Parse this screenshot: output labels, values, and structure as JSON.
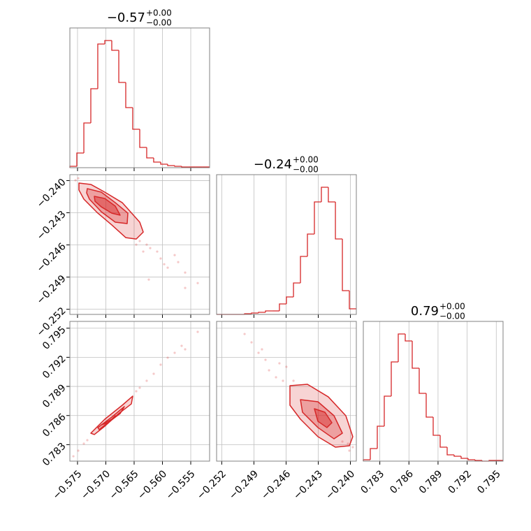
{
  "chart_data": {
    "type": "corner",
    "color": "#d62728",
    "grid": true,
    "parameters": [
      {
        "title": {
          "value": "−0.57",
          "upper": "+0.00",
          "lower": "−0.00"
        },
        "lim": [
          -0.57635,
          -0.55167
        ],
        "ticks": [
          {
            "value": -0.575,
            "label": "−0.575"
          },
          {
            "value": -0.57,
            "label": "−0.570"
          },
          {
            "value": -0.565,
            "label": "−0.565"
          },
          {
            "value": -0.56,
            "label": "−0.560"
          },
          {
            "value": -0.555,
            "label": "−0.555"
          }
        ],
        "bins": [
          -0.57635,
          -0.57512,
          -0.57388,
          -0.57265,
          -0.57142,
          -0.57018,
          -0.56895,
          -0.56771,
          -0.56648,
          -0.56525,
          -0.56401,
          -0.56278,
          -0.56155,
          -0.56031,
          -0.55908,
          -0.55784,
          -0.55661,
          -0.55537,
          -0.55414,
          -0.55291,
          -0.55167
        ],
        "counts": [
          2,
          21,
          64,
          113,
          177,
          182,
          168,
          122,
          86,
          55,
          29,
          14,
          8,
          5,
          3,
          2,
          1,
          1,
          1,
          1
        ],
        "ylim": [
          0,
          200
        ]
      },
      {
        "title": {
          "value": "−0.24",
          "upper": "+0.00",
          "lower": "−0.00"
        },
        "lim": [
          -0.25248,
          -0.23945
        ],
        "ticks": [
          {
            "value": -0.252,
            "label": "−0.252"
          },
          {
            "value": -0.249,
            "label": "−0.249"
          },
          {
            "value": -0.246,
            "label": "−0.246"
          },
          {
            "value": -0.243,
            "label": "−0.243"
          },
          {
            "value": -0.24,
            "label": "−0.240"
          }
        ],
        "bins": [
          -0.25248,
          -0.25183,
          -0.25118,
          -0.25052,
          -0.24987,
          -0.24922,
          -0.24857,
          -0.24792,
          -0.24727,
          -0.24662,
          -0.24597,
          -0.24531,
          -0.24466,
          -0.24401,
          -0.24336,
          -0.24271,
          -0.24206,
          -0.2414,
          -0.24075,
          -0.2401,
          -0.23945
        ],
        "counts": [
          0,
          0,
          0,
          0,
          1,
          2,
          3,
          5,
          5,
          15,
          25,
          45,
          83,
          115,
          161,
          182,
          161,
          108,
          34,
          8
        ],
        "ylim": [
          0,
          200
        ]
      },
      {
        "title": {
          "value": "0.79",
          "upper": "+0.00",
          "lower": "−0.00"
        },
        "lim": [
          0.7813,
          0.7957
        ],
        "ticks": [
          0.783,
          0.786,
          0.789,
          0.792,
          0.795
        ],
        "bins": [
          0.7813,
          0.78202,
          0.78274,
          0.78346,
          0.78418,
          0.7849,
          0.78562,
          0.78634,
          0.78706,
          0.78778,
          0.7885,
          0.78922,
          0.78994,
          0.79066,
          0.79138,
          0.7921,
          0.79282,
          0.79354,
          0.79426,
          0.79498,
          0.7957
        ],
        "counts": [
          2,
          18,
          50,
          93,
          142,
          182,
          172,
          133,
          97,
          63,
          37,
          20,
          9,
          7,
          4,
          2,
          1,
          0,
          1,
          1
        ],
        "ylim": [
          0,
          200
        ]
      }
    ],
    "pairs": [
      {
        "contours": [
          {
            "x": [
              -0.57475,
              -0.57265,
              -0.57018,
              -0.5671,
              -0.56401,
              -0.56339,
              -0.56463,
              -0.56648,
              -0.56895,
              -0.57141,
              -0.57388,
              -0.57475
            ],
            "y": [
              -0.24023,
              -0.24036,
              -0.24108,
              -0.24206,
              -0.24388,
              -0.2448,
              -0.24545,
              -0.24532,
              -0.24414,
              -0.24304,
              -0.24173,
              -0.24088
            ]
          },
          {
            "x": [
              -0.57327,
              -0.5708,
              -0.56833,
              -0.56611,
              -0.56623,
              -0.56833,
              -0.5708,
              -0.5729,
              -0.57339
            ],
            "y": [
              -0.24075,
              -0.24108,
              -0.24206,
              -0.24304,
              -0.24401,
              -0.24388,
              -0.24291,
              -0.24173,
              -0.24115
            ]
          },
          {
            "x": [
              -0.57203,
              -0.57018,
              -0.56833,
              -0.56747,
              -0.56895,
              -0.5708,
              -0.57191
            ],
            "y": [
              -0.24147,
              -0.24167,
              -0.24238,
              -0.24323,
              -0.24304,
              -0.24245,
              -0.24193
            ]
          }
        ],
        "points": {
          "x": [
            -0.56401,
            -0.56278,
            -0.56216,
            -0.56093,
            -0.56031,
            -0.55969,
            -0.55907,
            -0.55784,
            -0.55722,
            -0.55599,
            -0.55599,
            -0.55377,
            -0.56241,
            -0.56463,
            -0.56339,
            -0.57487,
            -0.57536
          ],
          "y": [
            -0.24564,
            -0.24597,
            -0.2463,
            -0.24662,
            -0.24727,
            -0.2478,
            -0.24812,
            -0.24695,
            -0.2476,
            -0.24858,
            -0.25001,
            -0.24956,
            -0.24923,
            -0.24597,
            -0.24662,
            -0.23978,
            -0.23997
          ]
        }
      },
      {
        "contours": [
          {
            "x": [
              -0.57265,
              -0.57018,
              -0.5671,
              -0.56525,
              -0.56549,
              -0.56771,
              -0.57018,
              -0.57203
            ],
            "y": [
              0.78418,
              0.78562,
              0.78706,
              0.788,
              0.7872,
              0.7862,
              0.7849,
              0.78404
            ]
          },
          {
            "x": [
              -0.57141,
              -0.56895,
              -0.56673,
              -0.56747,
              -0.56993,
              -0.57116
            ],
            "y": [
              0.78476,
              0.78584,
              0.78692,
              0.7862,
              0.78512,
              0.78454
            ]
          },
          {
            "x": [
              -0.5708,
              -0.56895,
              -0.56833,
              -0.56956
            ],
            "y": [
              0.78504,
              0.78562,
              0.78598,
              0.78526
            ]
          }
        ],
        "points": {
          "x": [
            -0.57573,
            -0.57487,
            -0.57388,
            -0.57327,
            -0.56401,
            -0.56278,
            -0.56154,
            -0.56031,
            -0.55907,
            -0.55784,
            -0.55661,
            -0.55599,
            -0.55377,
            -0.56463
          ],
          "y": [
            0.7818,
            0.78238,
            0.7831,
            0.78346,
            0.78886,
            0.78958,
            0.7903,
            0.79124,
            0.79196,
            0.79246,
            0.79318,
            0.79282,
            0.79462,
            0.7885
          ]
        }
      },
      {
        "contours": [
          {
            "x": [
              -0.24564,
              -0.24401,
              -0.24206,
              -0.24043,
              -0.23978,
              -0.2401,
              -0.2414,
              -0.24303,
              -0.24466,
              -0.24564
            ],
            "y": [
              0.78908,
              0.78922,
              0.78792,
              0.78598,
              0.78382,
              0.78288,
              0.78274,
              0.78382,
              0.78562,
              0.78706
            ]
          },
          {
            "x": [
              -0.24466,
              -0.24303,
              -0.24153,
              -0.24075,
              -0.24153,
              -0.24303,
              -0.24447
            ],
            "y": [
              0.78764,
              0.78742,
              0.78598,
              0.78418,
              0.7836,
              0.78476,
              0.78634
            ]
          },
          {
            "x": [
              -0.24336,
              -0.24238,
              -0.24173,
              -0.24219,
              -0.24303
            ],
            "y": [
              0.7867,
              0.78634,
              0.78526,
              0.78476,
              0.7854
            ]
          }
        ],
        "points": {
          "x": [
            -0.24987,
            -0.24922,
            -0.24857,
            -0.24792,
            -0.24759,
            -0.24694,
            -0.24662,
            -0.24597,
            -0.24629,
            -0.23978,
            -0.2401,
            -0.24023,
            -0.24075,
            -0.24531,
            -0.24825
          ],
          "y": [
            0.7944,
            0.79354,
            0.79246,
            0.79174,
            0.79066,
            0.78994,
            0.79138,
            0.79102,
            0.78958,
            0.78274,
            0.78238,
            0.7831,
            0.78332,
            0.78958,
            0.79282
          ]
        }
      }
    ]
  }
}
